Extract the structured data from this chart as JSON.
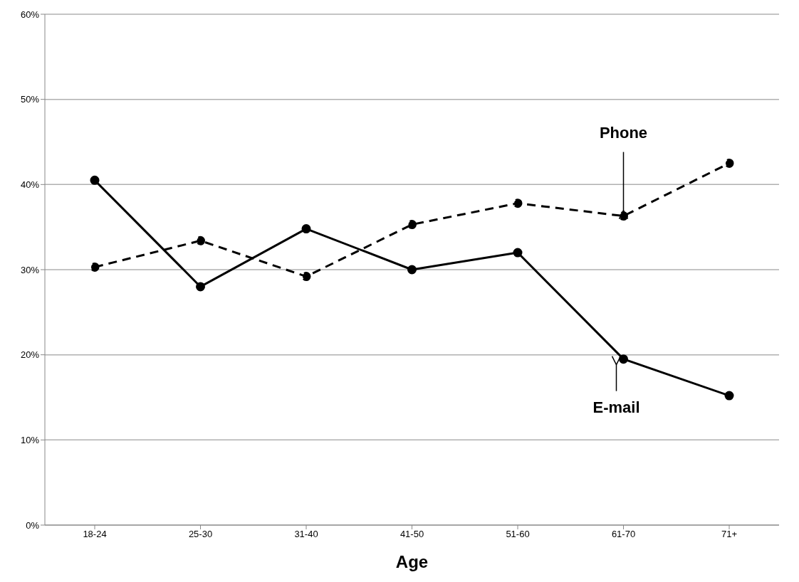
{
  "chart_data": {
    "type": "line",
    "xlabel": "Age",
    "categories": [
      "18-24",
      "25-30",
      "31-40",
      "41-50",
      "51-60",
      "61-70",
      "71+"
    ],
    "series": [
      {
        "color": "#000000",
        "line_style": "solid",
        "values": [
          40.5,
          28,
          34.8,
          30,
          32,
          19.5,
          15.2
        ]
      },
      {
        "color": "#000000",
        "line_style": "dashed",
        "values": [
          30.3,
          33.4,
          29.2,
          35.3,
          37.8,
          36.3,
          42.5
        ]
      }
    ],
    "ylim": [
      0,
      60
    ],
    "yticks": [
      {
        "value": 0,
        "label": "0%"
      },
      {
        "value": 10,
        "label": "10%"
      },
      {
        "value": 20,
        "label": "20%"
      },
      {
        "value": 30,
        "label": "30%"
      },
      {
        "value": 40,
        "label": "40%"
      },
      {
        "value": 50,
        "label": "50%"
      },
      {
        "value": 60,
        "label": "60%"
      }
    ],
    "grid": "y",
    "legend": false,
    "marker": "circle",
    "annotations": [
      {
        "text": "Phone",
        "x": "61-70",
        "y": 36.3
      },
      {
        "text": "E-mail",
        "x": "61-70",
        "y": 19.5
      }
    ]
  }
}
